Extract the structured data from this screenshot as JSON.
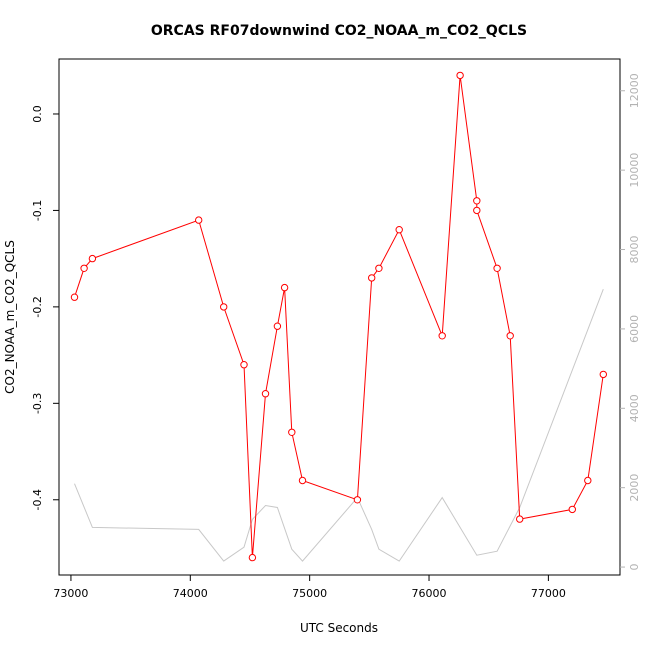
{
  "chart_data": {
    "type": "line",
    "title": "ORCAS RF07downwind CO2_NOAA_m_CO2_QCLS",
    "xlabel": "UTC Seconds",
    "ylabel": "CO2_NOAA_m_CO2_QCLS",
    "xlim": [
      72900,
      77600
    ],
    "ylim": [
      -0.478,
      0.057
    ],
    "y2lim": [
      -200,
      12800
    ],
    "x_ticks": [
      73000,
      74000,
      75000,
      76000,
      77000
    ],
    "x_tick_labels": [
      "73000",
      "74000",
      "75000",
      "76000",
      "77000"
    ],
    "y_ticks": [
      -0.4,
      -0.3,
      -0.2,
      -0.1,
      0.0
    ],
    "y_tick_labels": [
      "-0.4",
      "-0.3",
      "-0.2",
      "-0.1",
      "0.0"
    ],
    "y2_ticks": [
      0,
      2000,
      4000,
      6000,
      8000,
      10000,
      12000
    ],
    "y2_tick_labels": [
      "0",
      "2000",
      "4000",
      "6000",
      "8000",
      "10000",
      "12000"
    ],
    "grid": false,
    "colors": {
      "primary": "#ff0000",
      "secondary": "#c8c8c8",
      "right_axis": "#b3b3b3"
    },
    "series": [
      {
        "axis": "left",
        "marker": "open-circle",
        "x": [
          73030,
          73110,
          73180,
          74070,
          74280,
          74450,
          74520,
          74630,
          74730,
          74790,
          74850,
          74940,
          75400,
          75520,
          75580,
          75750,
          76110,
          76260,
          76400,
          76400,
          76570,
          76680,
          76760,
          77200,
          77330,
          77460
        ],
        "y": [
          -0.19,
          -0.16,
          -0.15,
          -0.11,
          -0.2,
          -0.26,
          -0.46,
          -0.29,
          -0.22,
          -0.18,
          -0.33,
          -0.38,
          -0.4,
          -0.17,
          -0.16,
          -0.12,
          -0.23,
          0.04,
          -0.09,
          -0.1,
          -0.16,
          -0.23,
          -0.42,
          -0.41,
          -0.38,
          -0.27
        ]
      },
      {
        "axis": "right",
        "marker": "none",
        "x": [
          73030,
          73180,
          74070,
          74280,
          74450,
          74520,
          74630,
          74730,
          74850,
          74940,
          75400,
          75520,
          75580,
          75750,
          76110,
          76400,
          76570,
          76760,
          77460
        ],
        "y": [
          2100,
          1000,
          950,
          150,
          500,
          1200,
          1550,
          1500,
          450,
          150,
          1750,
          950,
          450,
          150,
          1750,
          300,
          400,
          1500,
          7000
        ]
      }
    ]
  }
}
